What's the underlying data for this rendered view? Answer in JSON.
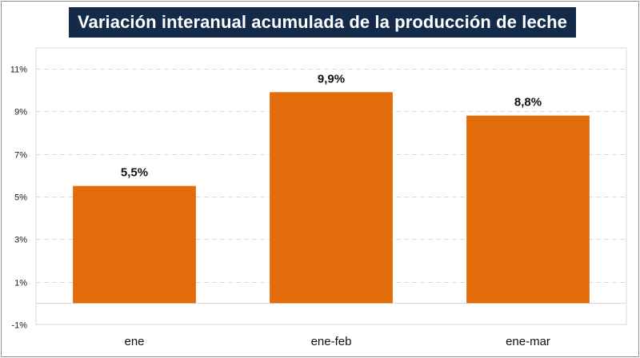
{
  "chart_data": {
    "type": "bar",
    "title": "Variación interanual acumulada de la producción de leche",
    "categories": [
      "ene",
      "ene-feb",
      "ene-mar"
    ],
    "values": [
      5.5,
      9.9,
      8.8
    ],
    "data_labels": [
      "5,5%",
      "9,9%",
      "8,8%"
    ],
    "ylim": [
      -1,
      11
    ],
    "yticks": [
      -1,
      1,
      3,
      5,
      7,
      9,
      11
    ],
    "ytick_labels": [
      "-1%",
      "1%",
      "3%",
      "5%",
      "7%",
      "9%",
      "11%"
    ],
    "xlabel": "",
    "ylabel": "",
    "grid": true,
    "bar_color": "#e36c0a"
  }
}
